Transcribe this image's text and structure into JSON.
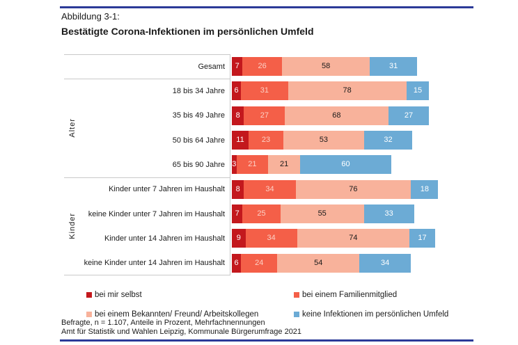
{
  "page": {
    "figure_label": "Abbildung 3-1:",
    "title": "Bestätigte Corona-Infektionen im persönlichen Umfeld",
    "footer_line1": "Befragte, n = 1.107, Anteile in Prozent, Mehrfachnennungen",
    "footer_line2": "Amt für Statistik und Wahlen Leipzig, Kommunale Bürgerumfrage 2021",
    "rule_color": "#2b3a98"
  },
  "chart_data": {
    "type": "bar",
    "orientation": "horizontal",
    "stacked": true,
    "units": "percent",
    "note": "Mehrfachnennungen, Summen je Zeile über 100",
    "series_names": [
      "bei mir selbst",
      "bei einem Familienmitglied",
      "bei einem Bekannten/ Freund/ Arbeitskollegen",
      "keine Infektionen im persönlichen Umfeld"
    ],
    "series_colors": [
      "#c3181d",
      "#f45f48",
      "#f8b29b",
      "#6cabd5"
    ],
    "value_label_colors": [
      "#ffffff",
      "#fcd0c5",
      "#1a1a1a",
      "#ffffff"
    ],
    "groups": [
      {
        "label": "",
        "rows": [
          {
            "label": "Gesamt",
            "values": [
              7,
              26,
              58,
              31
            ]
          }
        ]
      },
      {
        "label": "Alter",
        "rows": [
          {
            "label": "18 bis 34 Jahre",
            "values": [
              6,
              31,
              78,
              15
            ]
          },
          {
            "label": "35 bis 49 Jahre",
            "values": [
              8,
              27,
              68,
              27
            ]
          },
          {
            "label": "50 bis 64 Jahre",
            "values": [
              11,
              23,
              53,
              32
            ]
          },
          {
            "label": "65 bis 90 Jahre",
            "values": [
              3,
              21,
              21,
              60
            ]
          }
        ]
      },
      {
        "label": "Kinder",
        "rows": [
          {
            "label": "Kinder unter 7 Jahren im Haushalt",
            "values": [
              8,
              34,
              76,
              18
            ]
          },
          {
            "label": "keine Kinder unter 7 Jahren im Haushalt",
            "values": [
              7,
              25,
              55,
              33
            ]
          },
          {
            "label": "Kinder unter 14 Jahren im Haushalt",
            "values": [
              9,
              34,
              74,
              17
            ]
          },
          {
            "label": "keine Kinder unter 14 Jahren im Haushalt",
            "values": [
              6,
              24,
              54,
              34
            ]
          }
        ]
      }
    ],
    "legend": [
      {
        "label": "bei mir selbst",
        "color": "#c3181d"
      },
      {
        "label": "bei einem Familienmitglied",
        "color": "#f45f48"
      },
      {
        "label": "bei einem Bekannten/ Freund/ Arbeitskollegen",
        "color": "#f8b29b"
      },
      {
        "label": "keine Infektionen im persönlichen Umfeld",
        "color": "#6cabd5"
      }
    ]
  }
}
